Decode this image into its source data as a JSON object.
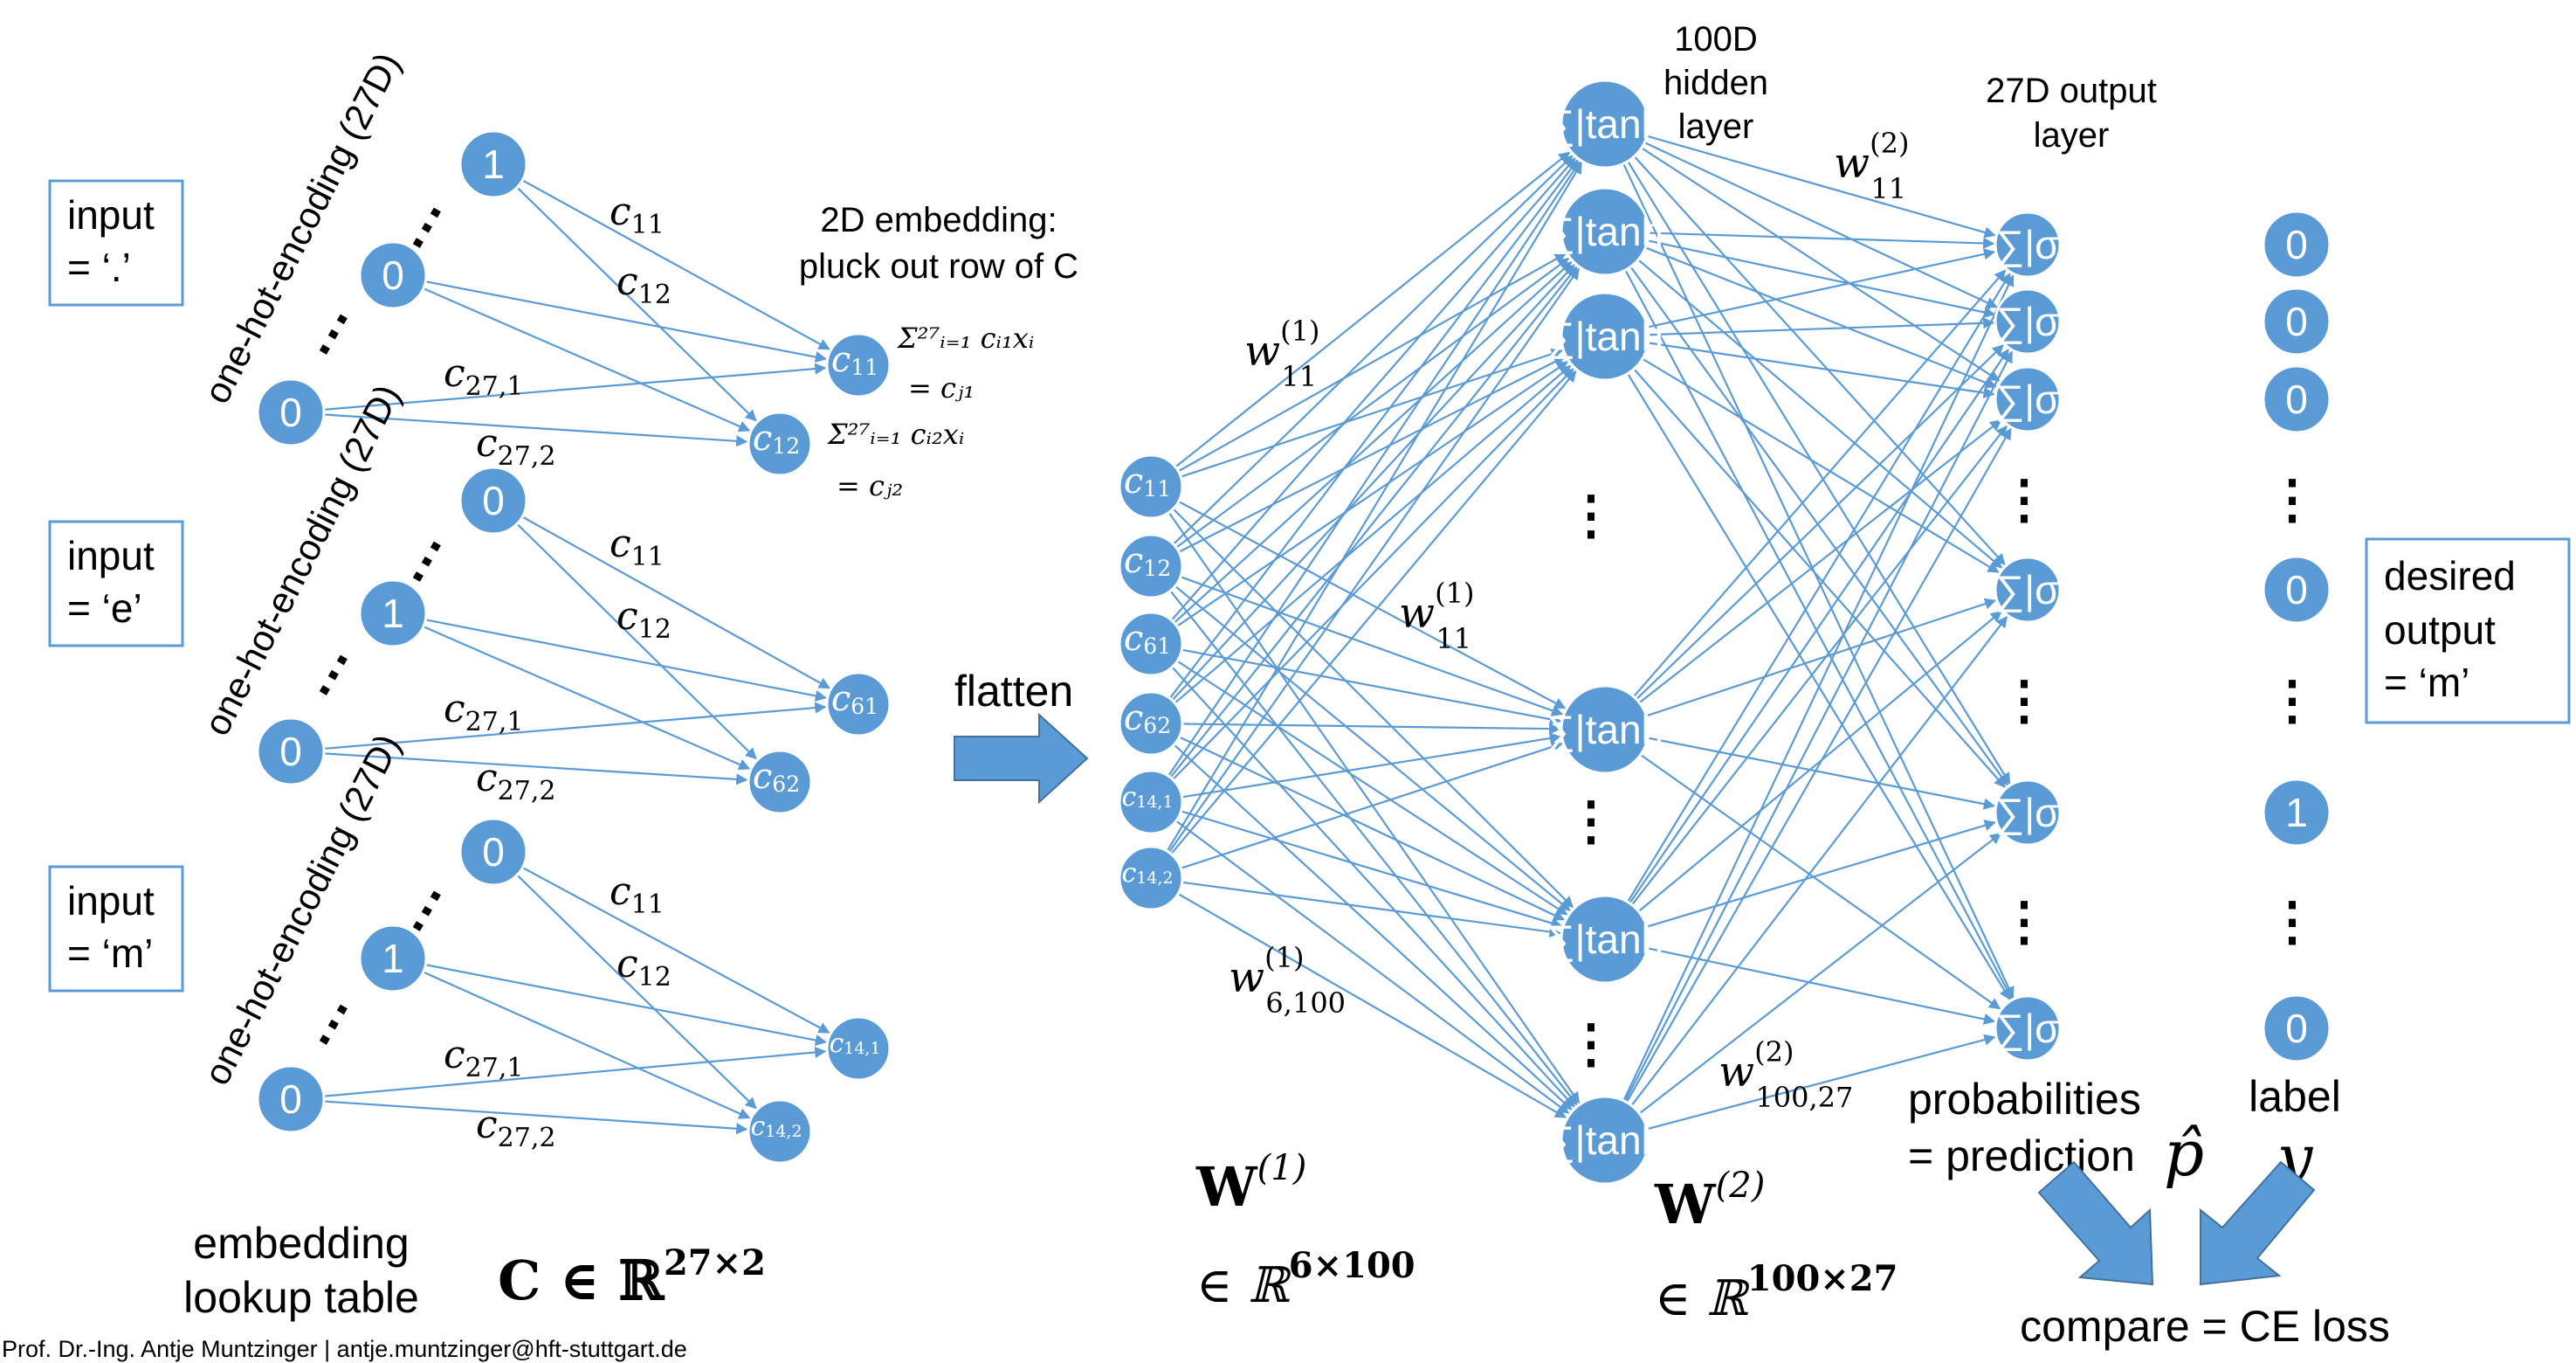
{
  "inputs": [
    {
      "line1": "input",
      "line2": "= ‘.’"
    },
    {
      "line1": "input",
      "line2": "= ‘e’"
    },
    {
      "line1": "input",
      "line2": "= ‘m’"
    }
  ],
  "one_hot_label": "one-hot-encoding (27D)",
  "one_hot_blocks": [
    {
      "values": [
        "1",
        "0",
        "0"
      ],
      "embeds": [
        "c11",
        "c12"
      ]
    },
    {
      "values": [
        "0",
        "1",
        "0"
      ],
      "embeds": [
        "c61",
        "c62"
      ]
    },
    {
      "values": [
        "0",
        "1",
        "0"
      ],
      "embeds": [
        "c14,1",
        "c14,2"
      ]
    }
  ],
  "edge_labels": [
    "c11",
    "c12",
    "c27,1",
    "c27,2"
  ],
  "embedding_note": {
    "line1": "2D embedding:",
    "line2": "pluck out row of C"
  },
  "sum_formulas": [
    "Σ²⁷ᵢ₌₁ cᵢ₁xᵢ",
    "= cⱼ₁",
    "Σ²⁷ᵢ₌₁ cᵢ₂xᵢ",
    "= cⱼ₂"
  ],
  "embedding_table": {
    "line1": "embedding",
    "line2": "lookup table",
    "matrix": "C ∈ ℝ",
    "dims": "27×2"
  },
  "flatten_label": "flatten",
  "flat_nodes": [
    "c11",
    "c12",
    "c61",
    "c62",
    "c14,1",
    "c14,2"
  ],
  "hidden_layer": {
    "line1": "100D",
    "line2": "hidden",
    "line3": "layer",
    "node_label": "∑|tanh"
  },
  "output_layer": {
    "line1": "27D output",
    "line2": "layer",
    "node_label": "∑|σ"
  },
  "weights": {
    "w1_11": "w",
    "w1_sup": "(1)",
    "w1_sub": "11",
    "w1_6100_sub": "6,100",
    "w2_sup": "(2)",
    "w2_11_sub": "11",
    "w2_10027_sub": "100,27"
  },
  "matrices": {
    "W1": "W",
    "W1_sup": "(1)",
    "W1_space": "∈ ℝ",
    "W1_dims": "6×100",
    "W2": "W",
    "W2_sup": "(2)",
    "W2_space": "∈ ℝ",
    "W2_dims": "100×27"
  },
  "label_values": [
    "0",
    "0",
    "0",
    "0",
    "1",
    "0"
  ],
  "desired_output": {
    "line1": "desired",
    "line2": "output",
    "line3": "= ‘m’"
  },
  "probabilities": {
    "line1": "probabilities",
    "line2": "= prediction",
    "symbol": "p̂"
  },
  "label": {
    "title": "label",
    "symbol": "y"
  },
  "compare": "compare = CE loss",
  "footer": "Prof. Dr.-Ing. Antje Muntzinger | antje.muntzinger@hft-stuttgart.de",
  "colors": {
    "node": "#5b9bd5",
    "edge": "#5b9bd5",
    "box": "#5b9bd5"
  }
}
